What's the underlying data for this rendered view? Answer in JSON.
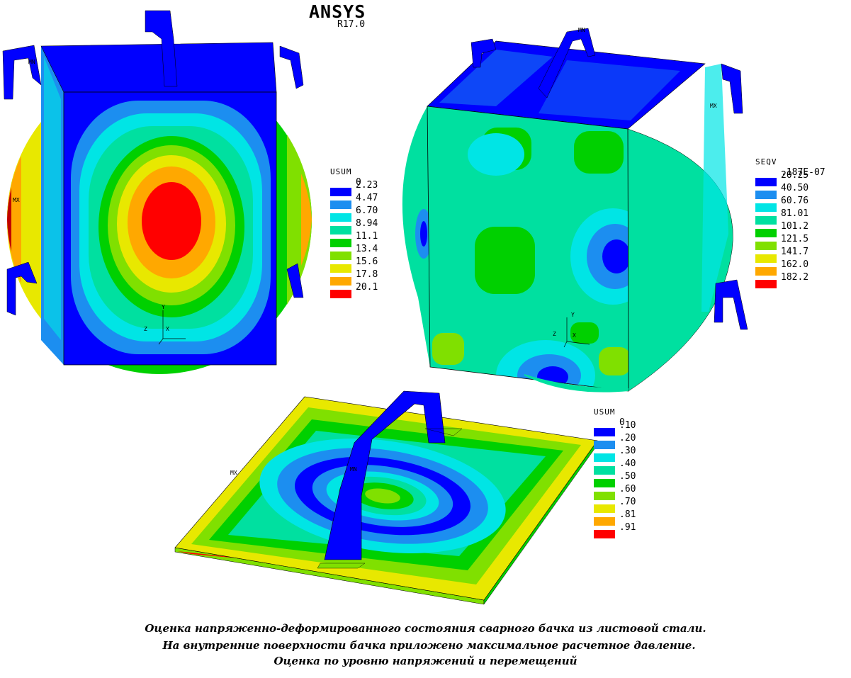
{
  "header": {
    "brand": "ANSYS",
    "version": "R17.0"
  },
  "legends": [
    {
      "title": "USUM",
      "labels": [
        "0",
        "2.23",
        "4.47",
        "6.70",
        "8.94",
        "11.1",
        "13.4",
        "15.6",
        "17.8",
        "20.1"
      ],
      "colors": [
        "#0000ff",
        "#1c8ef0",
        "#00e5e5",
        "#00e0a0",
        "#00d000",
        "#80e000",
        "#e8e800",
        "#ffa800",
        "#ff0000"
      ]
    },
    {
      "title": "SEQV",
      "labels": [
        ".187E-07",
        "20.25",
        "40.50",
        "60.76",
        "81.01",
        "101.2",
        "121.5",
        "141.7",
        "162.0",
        "182.2"
      ],
      "colors": [
        "#0000ff",
        "#1c8ef0",
        "#00e5e5",
        "#00e0a0",
        "#00d000",
        "#80e000",
        "#e8e800",
        "#ffa800",
        "#ff0000"
      ]
    },
    {
      "title": "USUM",
      "labels": [
        "0",
        ".10",
        ".20",
        ".30",
        ".40",
        ".50",
        ".60",
        ".70",
        ".81",
        ".91"
      ],
      "colors": [
        "#0000ff",
        "#1c8ef0",
        "#00e5e5",
        "#00e0a0",
        "#00d000",
        "#80e000",
        "#e8e800",
        "#ffa800",
        "#ff0000"
      ]
    }
  ],
  "markers": {
    "min": "MN",
    "max": "MX",
    "axis_y": "Y",
    "axis_x": "X",
    "axis_z": "Z"
  },
  "caption": {
    "line1": "Оценка напряженно-деформированного состояния сварного бачка из листовой стали.",
    "line2": "На внутренние поверхности бачка приложено максимальное расчетное давление.",
    "line3": "Оценка по уровню напряжений и перемещений"
  }
}
